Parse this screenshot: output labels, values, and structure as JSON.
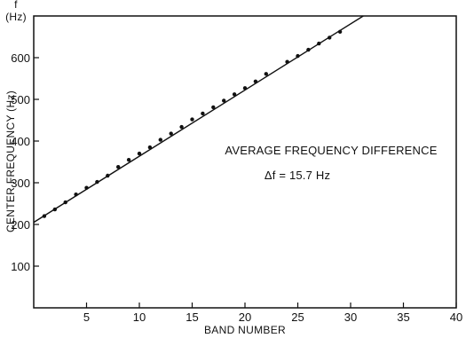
{
  "chart_data": {
    "type": "scatter",
    "title": "",
    "xlabel": "BAND NUMBER",
    "ylabel": "CENTER FREQUENCY (Hz)",
    "yunit_top": "f",
    "yunit_bottom": "(Hz)",
    "xlim": [
      0,
      40
    ],
    "ylim": [
      0,
      700
    ],
    "xticks": [
      5,
      10,
      15,
      20,
      25,
      30,
      35,
      40
    ],
    "yticks": [
      100,
      200,
      300,
      400,
      500,
      600
    ],
    "grid": false,
    "series": [
      {
        "points": [
          [
            1,
            220
          ],
          [
            2,
            236
          ],
          [
            3,
            253
          ],
          [
            4,
            272
          ],
          [
            5,
            288
          ],
          [
            6,
            302
          ],
          [
            7,
            317
          ],
          [
            8,
            338
          ],
          [
            9,
            355
          ],
          [
            10,
            370
          ],
          [
            11,
            385
          ],
          [
            12,
            403
          ],
          [
            13,
            418
          ],
          [
            14,
            434
          ],
          [
            15,
            452
          ],
          [
            16,
            466
          ],
          [
            17,
            481
          ],
          [
            18,
            497
          ],
          [
            19,
            512
          ],
          [
            20,
            527
          ],
          [
            21,
            543
          ],
          [
            22,
            561
          ],
          [
            24,
            590
          ],
          [
            25,
            604
          ],
          [
            26,
            619
          ],
          [
            27,
            634
          ],
          [
            28,
            648
          ],
          [
            29,
            662
          ]
        ]
      }
    ],
    "fit_line": {
      "x": [
        0,
        31.2
      ],
      "y": [
        205,
        700
      ]
    },
    "annotation_line1": "AVERAGE FREQUENCY DIFFERENCE",
    "annotation_line2": "Δf = 15.7 Hz"
  }
}
